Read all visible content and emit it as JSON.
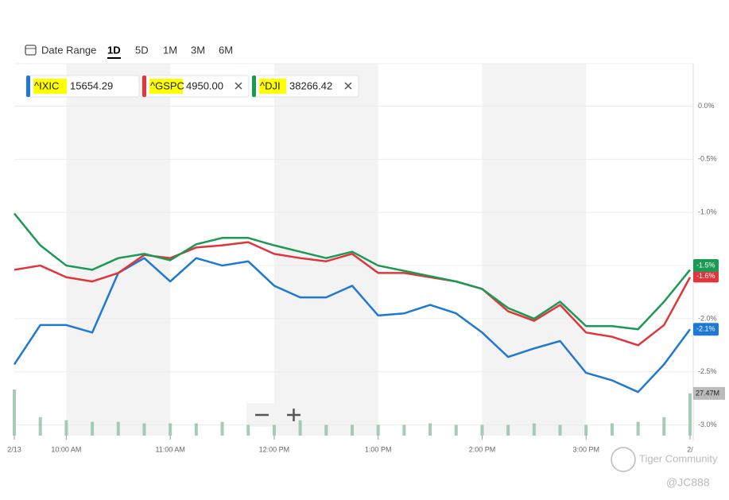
{
  "chart_data": {
    "type": "line",
    "controls": {
      "label": "Date Range",
      "ranges": [
        "1D",
        "5D",
        "1M",
        "3M",
        "6M"
      ],
      "active": 0
    },
    "x": [
      9.5,
      9.75,
      10,
      10.25,
      10.5,
      10.75,
      11,
      11.25,
      11.5,
      11.75,
      12,
      12.25,
      12.5,
      12.75,
      13,
      13.25,
      13.5,
      13.75,
      14,
      14.25,
      14.5,
      14.75,
      15,
      15.25,
      15.5,
      15.75,
      16
    ],
    "xlim": [
      9.5,
      16
    ],
    "xticks": [
      {
        "value": 9.5,
        "label": "2/13"
      },
      {
        "value": 10,
        "label": "10:00 AM"
      },
      {
        "value": 11,
        "label": "11:00 AM"
      },
      {
        "value": 12,
        "label": "12:00 PM"
      },
      {
        "value": 13,
        "label": "1:00 PM"
      },
      {
        "value": 14,
        "label": "2:00 PM"
      },
      {
        "value": 15,
        "label": "3:00 PM"
      },
      {
        "value": 16,
        "label": "2/"
      }
    ],
    "ylim": [
      -3.1,
      0.4
    ],
    "yticks": [
      {
        "value": 0,
        "label": "0.0%"
      },
      {
        "value": -0.5,
        "label": "-0.5%"
      },
      {
        "value": -1,
        "label": "-1.0%"
      },
      {
        "value": -1.5,
        "label": "-1.5%"
      },
      {
        "value": -2,
        "label": "-2.0%"
      },
      {
        "value": -2.5,
        "label": "-2.5%"
      },
      {
        "value": -3,
        "label": "-3.0%"
      }
    ],
    "series": [
      {
        "name": "^IXIC",
        "price": "15654.29",
        "color": "#1f78d4",
        "end_label": {
          "value": -2.1,
          "label": "-2.1%"
        },
        "values": [
          -2.43,
          -2.06,
          -2.06,
          -2.13,
          -1.57,
          -1.43,
          -1.65,
          -1.43,
          -1.5,
          -1.46,
          -1.69,
          -1.8,
          -1.8,
          -1.69,
          -1.97,
          -1.95,
          -1.87,
          -1.95,
          -2.13,
          -2.36,
          -2.28,
          -2.21,
          -2.51,
          -2.58,
          -2.69,
          -2.43,
          -2.1
        ]
      },
      {
        "name": "^GSPC",
        "price": "4950.00",
        "color": "#e0363b",
        "end_label": {
          "value": -1.6,
          "label": "-1.6%"
        },
        "values": [
          -1.54,
          -1.5,
          -1.61,
          -1.65,
          -1.57,
          -1.4,
          -1.43,
          -1.33,
          -1.31,
          -1.28,
          -1.39,
          -1.43,
          -1.46,
          -1.39,
          -1.57,
          -1.57,
          -1.61,
          -1.65,
          -1.72,
          -1.93,
          -2.02,
          -1.87,
          -2.13,
          -2.17,
          -2.25,
          -2.06,
          -1.61
        ]
      },
      {
        "name": "^DJI",
        "price": "38266.42",
        "color": "#1a9a55",
        "end_label": {
          "value": -1.5,
          "label": "-1.5%"
        },
        "values": [
          -1.01,
          -1.31,
          -1.5,
          -1.54,
          -1.43,
          -1.39,
          -1.45,
          -1.3,
          -1.24,
          -1.24,
          -1.31,
          -1.37,
          -1.43,
          -1.37,
          -1.5,
          -1.55,
          -1.6,
          -1.65,
          -1.72,
          -1.9,
          -2,
          -1.84,
          -2.07,
          -2.07,
          -2.1,
          -1.84,
          -1.54
        ]
      }
    ],
    "volume": {
      "color": "#8fbfa3",
      "ylim": [
        0,
        60
      ],
      "values": [
        30,
        12,
        10,
        9,
        9,
        8,
        8,
        8,
        9,
        7,
        7,
        10,
        7,
        7,
        7,
        7,
        8,
        7,
        7,
        7,
        8,
        7,
        7,
        8,
        9,
        12,
        27.47
      ],
      "current": {
        "value": 27.47,
        "label": "27.47M"
      }
    },
    "watermark": {
      "brand": "Tiger Community",
      "user": "@JC888"
    }
  }
}
